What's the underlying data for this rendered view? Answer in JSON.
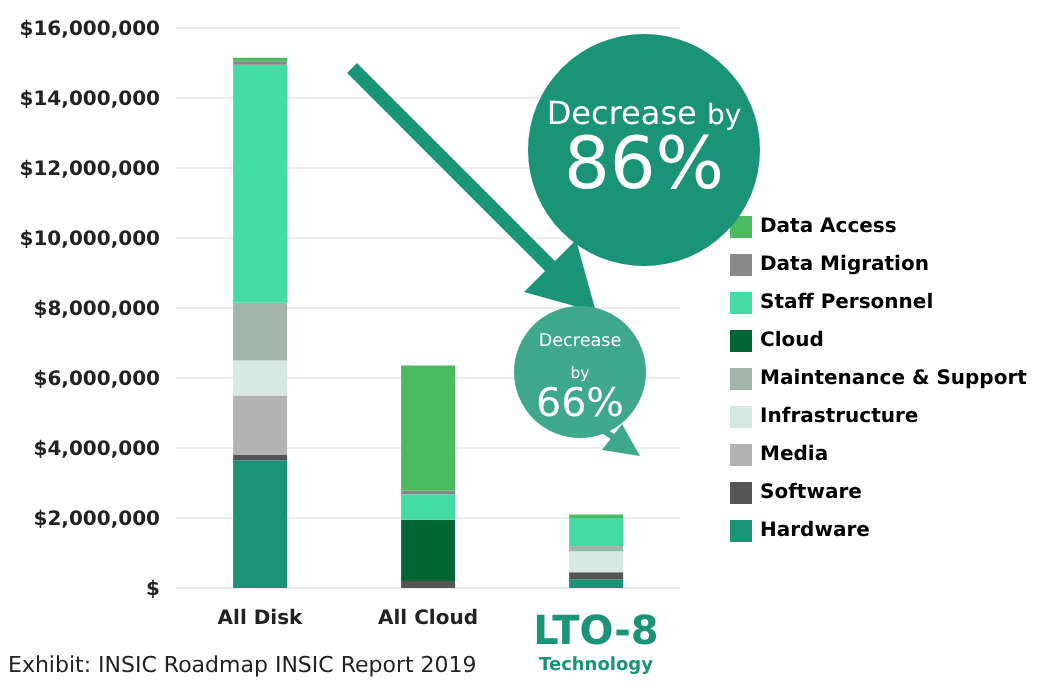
{
  "chart_data": {
    "type": "bar",
    "stacked": true,
    "categories": [
      "All Disk",
      "All Cloud",
      "LTO-8 Technology"
    ],
    "series": [
      {
        "name": "Hardware",
        "color": "#1a9377",
        "values": [
          3650000,
          null,
          250000
        ]
      },
      {
        "name": "Software",
        "color": "#555555",
        "values": [
          150000,
          200000,
          200000
        ]
      },
      {
        "name": "Media",
        "color": "#b3b3b3",
        "values": [
          1700000,
          null,
          null
        ]
      },
      {
        "name": "Infrastructure",
        "color": "#d5e8e2",
        "values": [
          1000000,
          null,
          600000
        ]
      },
      {
        "name": "Maintenance & Support",
        "color": "#a3b5aa",
        "values": [
          1650000,
          null,
          150000
        ]
      },
      {
        "name": "Cloud",
        "color": "#006633",
        "values": [
          null,
          1750000,
          null
        ]
      },
      {
        "name": "Staff Personnel",
        "color": "#45dba4",
        "values": [
          6800000,
          730000,
          800000
        ]
      },
      {
        "name": "Data Migration",
        "color": "#888888",
        "values": [
          100000,
          100000,
          null
        ]
      },
      {
        "name": "Data Access",
        "color": "#4cba61",
        "values": [
          100000,
          3580000,
          100000
        ]
      }
    ],
    "ylim": [
      0,
      16000000
    ],
    "yticks": [
      {
        "value": 0,
        "label": "$"
      },
      {
        "value": 2000000,
        "label": "$2,000,000"
      },
      {
        "value": 4000000,
        "label": "$4,000,000"
      },
      {
        "value": 6000000,
        "label": "$6,000,000"
      },
      {
        "value": 8000000,
        "label": "$8,000,000"
      },
      {
        "value": 10000000,
        "label": "$10,000,000"
      },
      {
        "value": 12000000,
        "label": "$12,000,000"
      },
      {
        "value": 14000000,
        "label": "$14,000,000"
      },
      {
        "value": 16000000,
        "label": "$16,000,000"
      }
    ],
    "grid": "y",
    "legend": "right",
    "annotations": [
      "Decrease by 86%",
      "Decrease by 66%",
      "Exhibit: INSIC Roadmap INSIC Report 2019"
    ]
  }
}
